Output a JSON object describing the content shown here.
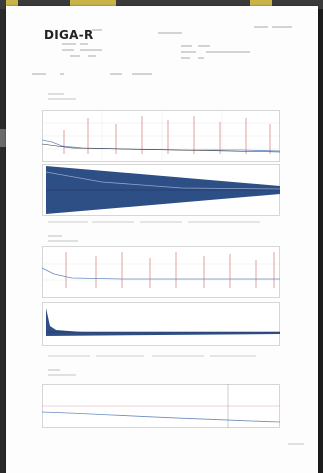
{
  "window": {
    "top_tabs": 3
  },
  "report": {
    "logo": "DIGA-R"
  }
}
